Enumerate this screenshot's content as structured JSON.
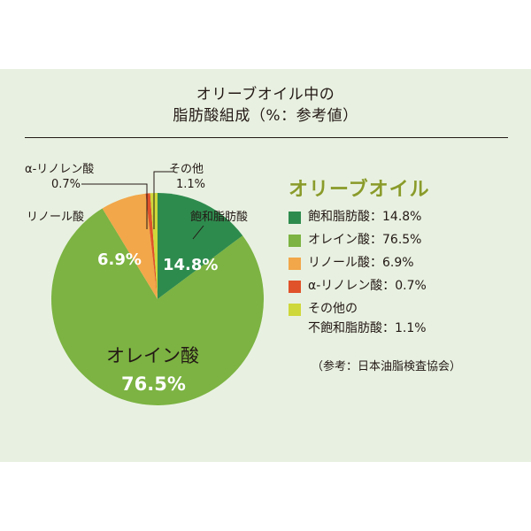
{
  "chart_data": {
    "type": "pie",
    "title": [
      "オリーブオイル中の",
      "脂肪酸組成（%：参考値）"
    ],
    "legend_title": "オリーブオイル",
    "slices": [
      {
        "label": "飽和脂肪酸",
        "value": 14.8,
        "color": "#2e8b4e"
      },
      {
        "label": "オレイン酸",
        "value": 76.5,
        "color": "#7cb342"
      },
      {
        "label": "リノール酸",
        "value": 6.9,
        "color": "#f2a74a"
      },
      {
        "label": "α-リノレン酸",
        "value": 0.7,
        "color": "#e0522a"
      },
      {
        "label": "その他の不飽和脂肪酸",
        "value": 1.1,
        "color": "#cfd83a"
      }
    ],
    "pie_labels": {
      "saturated_name": "飽和脂肪酸",
      "saturated_pct": "14.8%",
      "oleic_name": "オレイン酸",
      "oleic_pct": "76.5%",
      "linoleic_name": "リノール酸",
      "linoleic_pct": "6.9%",
      "alpha_name": "α-リノレン酸",
      "alpha_pct": "0.7%",
      "other_name": "その他",
      "other_pct": "1.1%"
    },
    "legend": [
      {
        "text": "飽和脂肪酸：14.8%",
        "color": "#2e8b4e"
      },
      {
        "text": "オレイン酸：76.5%",
        "color": "#7cb342"
      },
      {
        "text": "リノール酸：6.9%",
        "color": "#f2a74a"
      },
      {
        "text": "α-リノレン酸：0.7%",
        "color": "#e0522a"
      },
      {
        "text": [
          "その他の",
          "不飽和脂肪酸：1.1%"
        ],
        "color": "#cfd83a"
      }
    ],
    "source": "（参考：日本油脂検査協会）"
  }
}
